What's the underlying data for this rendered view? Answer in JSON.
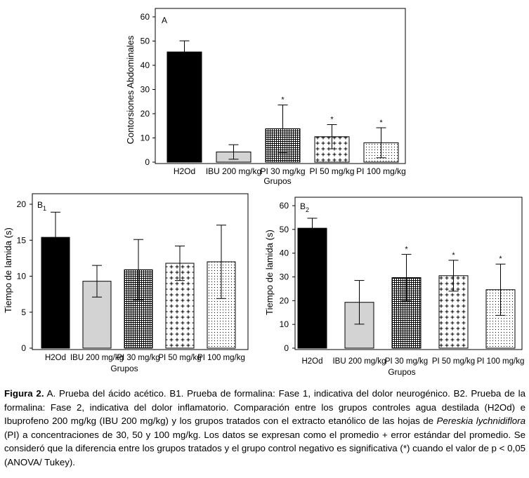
{
  "chart_data": [
    {
      "type": "bar",
      "panel_label": "A",
      "ylabel": "Contorsiones Abdominales",
      "xlabel": "Grupos",
      "ylim": [
        0,
        60
      ],
      "yticks": [
        0,
        10,
        20,
        30,
        40,
        50,
        60
      ],
      "categories": [
        "H2Od",
        "IBU 200 mg/kg",
        "PI 30 mg/kg",
        "PI 50 mg/kg",
        "PI 100 mg/kg"
      ],
      "values": [
        45.5,
        4.2,
        13.8,
        10.5,
        8.0
      ],
      "errors": [
        4.6,
        3.0,
        9.8,
        5.0,
        6.2
      ],
      "significance": [
        "",
        "",
        "*",
        "*",
        "*"
      ],
      "patterns": [
        "black",
        "gray",
        "grid",
        "plus",
        "dots"
      ]
    },
    {
      "type": "bar",
      "panel_label": "B",
      "panel_sub": "1",
      "ylabel": "Tiempo de lamida (s)",
      "xlabel": "Grupos",
      "ylim": [
        0,
        20
      ],
      "yticks": [
        0,
        5,
        10,
        15,
        20
      ],
      "categories": [
        "H2Od",
        "IBU 200 mg/kg",
        "PI 30 mg/kg",
        "PI 50 mg/kg",
        "PI 100 mg/kg"
      ],
      "values": [
        15.4,
        9.3,
        10.9,
        11.8,
        12.0
      ],
      "errors": [
        3.5,
        2.2,
        4.2,
        2.4,
        5.1
      ],
      "significance": [
        "",
        "",
        "",
        "",
        ""
      ],
      "patterns": [
        "black",
        "gray",
        "grid",
        "plus",
        "dots"
      ]
    },
    {
      "type": "bar",
      "panel_label": "B",
      "panel_sub": "2",
      "ylabel": "Tiempo de lamida (s)",
      "xlabel": "Grupos",
      "ylim": [
        0,
        60
      ],
      "yticks": [
        0,
        10,
        20,
        30,
        40,
        50,
        60
      ],
      "categories": [
        "H2Od",
        "IBU 200 mg/kg",
        "PI 30 mg/kg",
        "PI 50 mg/kg",
        "PI 100 mg/kg"
      ],
      "values": [
        50.5,
        19.3,
        29.7,
        30.5,
        24.6
      ],
      "errors": [
        4.2,
        9.2,
        9.8,
        6.5,
        10.8
      ],
      "significance": [
        "",
        "",
        "*",
        "*",
        "*"
      ],
      "patterns": [
        "black",
        "gray",
        "grid",
        "plus",
        "dots"
      ]
    }
  ],
  "caption": {
    "label": "Figura 2.",
    "before_italic": " A. Prueba del ácido acético. B1. Prueba de formalina: Fase 1, indicativa del dolor neurogénico. B2. Prueba de la formalina: Fase 2, indicativa del dolor inflamatorio. Comparación entre los grupos controles agua destilada (H2Od) e Ibuprofeno 200 mg/kg (IBU 200 mg/kg) y los grupos tratados con el extracto etanólico de las hojas de ",
    "italic": "Pereskia lychnidiflora",
    "after_italic": " (PI) a concentraciones de 30, 50 y 100 mg/kg. Los datos se expresan como el promedio + error estándar del promedio. Se consideró que la diferencia entre los grupos tratados y el grupo control negativo es significativa (*) cuando el valor de p < 0,05 (ANOVA/ Tukey)."
  },
  "colors": {
    "bar_black": "#000000",
    "bar_gray": "#d3d3d3",
    "pattern_fill": "#ffffff",
    "axis": "#000000"
  }
}
